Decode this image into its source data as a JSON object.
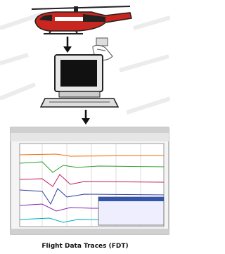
{
  "caption": "Flight Data Traces (FDT)"
}
